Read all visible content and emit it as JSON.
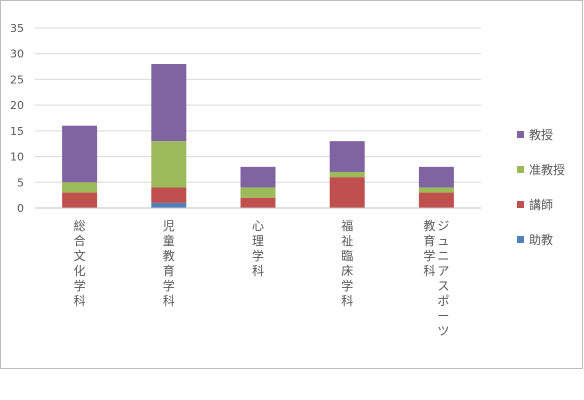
{
  "chart_data": {
    "type": "bar",
    "stacked": true,
    "categories": [
      "総合文化学科",
      "児童教育学科",
      "心理学科",
      "福祉臨床学科",
      "ジュニアスポーツ教育学科"
    ],
    "category_label_lines": [
      [
        "総合文化学科"
      ],
      [
        "児童教育学科"
      ],
      [
        "心理学科"
      ],
      [
        "福祉臨床学科"
      ],
      [
        "ジュニアスポーツ",
        "教育学科"
      ]
    ],
    "series": [
      {
        "name": "助教",
        "color": "#4F81BD",
        "values": [
          0,
          1,
          0,
          0,
          0
        ]
      },
      {
        "name": "講師",
        "color": "#C0504D",
        "values": [
          3,
          3,
          2,
          6,
          3
        ]
      },
      {
        "name": "准教授",
        "color": "#9BBB59",
        "values": [
          2,
          9,
          2,
          1,
          1
        ]
      },
      {
        "name": "教授",
        "color": "#8064A2",
        "values": [
          11,
          15,
          4,
          6,
          4
        ]
      }
    ],
    "legend_order": [
      "教授",
      "准教授",
      "講師",
      "助教"
    ],
    "legend_position": "right",
    "ylim": [
      0,
      35
    ],
    "yticks": [
      "0",
      "5",
      "10",
      "15",
      "20",
      "25",
      "30",
      "35"
    ],
    "grid": true,
    "title": "",
    "xlabel": "",
    "ylabel": ""
  }
}
